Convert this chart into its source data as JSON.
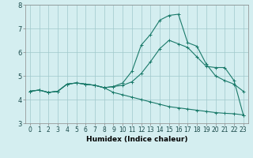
{
  "xlabel": "Humidex (Indice chaleur)",
  "ylabel": "",
  "background_color": "#d4eef0",
  "grid_color": "#a0c8cc",
  "line_color": "#1a7a6a",
  "xlim": [
    -0.5,
    23.5
  ],
  "ylim": [
    3.0,
    8.0
  ],
  "xticks": [
    0,
    1,
    2,
    3,
    4,
    5,
    6,
    7,
    8,
    9,
    10,
    11,
    12,
    13,
    14,
    15,
    16,
    17,
    18,
    19,
    20,
    21,
    22,
    23
  ],
  "yticks": [
    3,
    4,
    5,
    6,
    7,
    8
  ],
  "line1_x": [
    0,
    1,
    2,
    3,
    4,
    5,
    6,
    7,
    8,
    9,
    10,
    11,
    12,
    13,
    14,
    15,
    16,
    17,
    18,
    19,
    20,
    21,
    22,
    23
  ],
  "line1_y": [
    4.35,
    4.4,
    4.3,
    4.35,
    4.65,
    4.7,
    4.65,
    4.6,
    4.5,
    4.55,
    4.6,
    4.75,
    5.1,
    5.6,
    6.15,
    6.5,
    6.35,
    6.2,
    5.8,
    5.4,
    5.35,
    5.35,
    4.8,
    3.35
  ],
  "line2_x": [
    0,
    1,
    2,
    3,
    4,
    5,
    6,
    7,
    8,
    9,
    10,
    11,
    12,
    13,
    14,
    15,
    16,
    17,
    18,
    19,
    20,
    21,
    22,
    23
  ],
  "line2_y": [
    4.35,
    4.4,
    4.3,
    4.35,
    4.65,
    4.7,
    4.65,
    4.6,
    4.5,
    4.55,
    4.7,
    5.2,
    6.3,
    6.75,
    7.35,
    7.55,
    7.6,
    6.4,
    6.25,
    5.5,
    5.0,
    4.8,
    4.65,
    4.35
  ],
  "line3_x": [
    0,
    1,
    2,
    3,
    4,
    5,
    6,
    7,
    8,
    9,
    10,
    11,
    12,
    13,
    14,
    15,
    16,
    17,
    18,
    19,
    20,
    21,
    22,
    23
  ],
  "line3_y": [
    4.35,
    4.4,
    4.3,
    4.35,
    4.65,
    4.7,
    4.65,
    4.6,
    4.5,
    4.3,
    4.2,
    4.1,
    4.0,
    3.9,
    3.8,
    3.7,
    3.65,
    3.6,
    3.55,
    3.5,
    3.45,
    3.42,
    3.4,
    3.35
  ],
  "markersize": 3,
  "linewidth": 0.8,
  "tick_fontsize": 5.5,
  "xlabel_fontsize": 6.5
}
